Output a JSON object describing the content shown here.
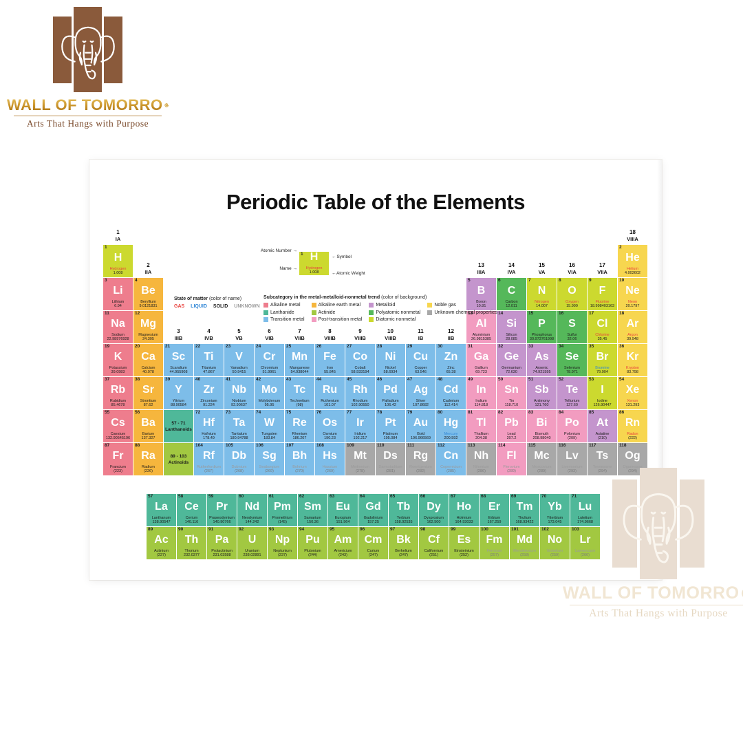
{
  "logo": {
    "brand": "WALL OF TOMORRO",
    "tagline": "Arts That Hangs with Purpose"
  },
  "poster": {
    "title": "Periodic Table of the Elements",
    "key": {
      "atomic_number_label": "Atomic Number",
      "symbol_label": "Symbol",
      "name_label": "Name",
      "atomic_weight_label": "Atomic Weight"
    },
    "legend_state": {
      "title": "State of matter",
      "subtitle": "(color of name)",
      "items": [
        {
          "label": "GAS",
          "state": "g"
        },
        {
          "label": "LIQUID",
          "state": "l"
        },
        {
          "label": "SOLID",
          "state": "s"
        },
        {
          "label": "UNKNOWN",
          "state": "u"
        }
      ]
    },
    "legend_subcategory": {
      "title": "Subcategory in the metal-metalloid-nonmetal trend",
      "subtitle": "(color of background)",
      "items": [
        {
          "label": "Alkaline metal",
          "cat": "ak"
        },
        {
          "label": "Lanthanide",
          "cat": "la"
        },
        {
          "label": "Transition metal",
          "cat": "tm"
        },
        {
          "label": "Alkaline earth metal",
          "cat": "ae"
        },
        {
          "label": "Actinide",
          "cat": "ac"
        },
        {
          "label": "Post-transition metal",
          "cat": "pt"
        },
        {
          "label": "Metalloid",
          "cat": "md"
        },
        {
          "label": "Polyatomic nonmetal",
          "cat": "pn"
        },
        {
          "label": "Diatomic nonmetal",
          "cat": "dn"
        },
        {
          "label": "Noble gas",
          "cat": "ng"
        },
        {
          "label": "Unknown chemical properties",
          "cat": "un"
        }
      ]
    },
    "category_colors": {
      "ak": "#ee7d8d",
      "ae": "#f6b63d",
      "tm": "#7dbde9",
      "pt": "#f29cc0",
      "md": "#c495cd",
      "pn": "#55b85a",
      "dn": "#ccd92f",
      "ng": "#f7d64f",
      "la": "#4fb899",
      "ac": "#a2c841",
      "un": "#a8a8a8"
    },
    "state_colors": {
      "g": "#e8413c",
      "l": "#2f86d6",
      "s": "#1c1c1c",
      "u": "#9b9b9b"
    },
    "group_labels": [
      {
        "num": "1",
        "label": "IA",
        "col": 1,
        "grow": 1
      },
      {
        "num": "2",
        "label": "IIA",
        "col": 2,
        "grow": 2
      },
      {
        "num": "3",
        "label": "IIIB",
        "col": 3,
        "grow": 4
      },
      {
        "num": "4",
        "label": "IVB",
        "col": 4,
        "grow": 4
      },
      {
        "num": "5",
        "label": "VB",
        "col": 5,
        "grow": 4
      },
      {
        "num": "6",
        "label": "VIB",
        "col": 6,
        "grow": 4
      },
      {
        "num": "7",
        "label": "VIIB",
        "col": 7,
        "grow": 4
      },
      {
        "num": "8",
        "label": "VIIIB",
        "col": 8,
        "grow": 4
      },
      {
        "num": "9",
        "label": "VIIIB",
        "col": 9,
        "grow": 4
      },
      {
        "num": "10",
        "label": "VIIIB",
        "col": 10,
        "grow": 4
      },
      {
        "num": "11",
        "label": "IB",
        "col": 11,
        "grow": 4
      },
      {
        "num": "12",
        "label": "IIB",
        "col": 12,
        "grow": 4
      },
      {
        "num": "13",
        "label": "IIIA",
        "col": 13,
        "grow": 2
      },
      {
        "num": "14",
        "label": "IVA",
        "col": 14,
        "grow": 2
      },
      {
        "num": "15",
        "label": "VA",
        "col": 15,
        "grow": 2
      },
      {
        "num": "16",
        "label": "VIA",
        "col": 16,
        "grow": 2
      },
      {
        "num": "17",
        "label": "VIIA",
        "col": 17,
        "grow": 2
      },
      {
        "num": "18",
        "label": "VIIIA",
        "col": 18,
        "grow": 1
      }
    ],
    "placeholders": [
      {
        "range": "57 - 71",
        "label": "Lanthanoids",
        "cat": "la",
        "col": 3,
        "grow": 7
      },
      {
        "range": "89 - 103",
        "label": "Actinoids",
        "cat": "ac",
        "col": 3,
        "grow": 8
      }
    ],
    "elements": [
      [
        1,
        "H",
        "Hydrogen",
        "1.008",
        "dn",
        "g",
        1,
        1
      ],
      [
        2,
        "He",
        "Helium",
        "4.002602",
        "ng",
        "g",
        18,
        1
      ],
      [
        3,
        "Li",
        "Lithium",
        "6.94",
        "ak",
        "s",
        1,
        2
      ],
      [
        4,
        "Be",
        "Beryllium",
        "9.0121831",
        "ae",
        "s",
        2,
        2
      ],
      [
        5,
        "B",
        "Boron",
        "10.81",
        "md",
        "s",
        13,
        2
      ],
      [
        6,
        "C",
        "Carbon",
        "12.011",
        "pn",
        "s",
        14,
        2
      ],
      [
        7,
        "N",
        "Nitrogen",
        "14.007",
        "dn",
        "g",
        15,
        2
      ],
      [
        8,
        "O",
        "Oxygen",
        "15.999",
        "dn",
        "g",
        16,
        2
      ],
      [
        9,
        "F",
        "Fluorine",
        "18.998403163",
        "dn",
        "g",
        17,
        2
      ],
      [
        10,
        "Ne",
        "Neon",
        "20.1797",
        "ng",
        "g",
        18,
        2
      ],
      [
        11,
        "Na",
        "Sodium",
        "22.98976928",
        "ak",
        "s",
        1,
        3
      ],
      [
        12,
        "Mg",
        "Magnesium",
        "24.305",
        "ae",
        "s",
        2,
        3
      ],
      [
        13,
        "Al",
        "Aluminium",
        "26.9815385",
        "pt",
        "s",
        13,
        3
      ],
      [
        14,
        "Si",
        "Silicon",
        "28.085",
        "md",
        "s",
        14,
        3
      ],
      [
        15,
        "P",
        "Phosphorus",
        "30.973761998",
        "pn",
        "s",
        15,
        3
      ],
      [
        16,
        "S",
        "Sulfur",
        "32.06",
        "pn",
        "s",
        16,
        3
      ],
      [
        17,
        "Cl",
        "Chlorine",
        "35.45",
        "dn",
        "g",
        17,
        3
      ],
      [
        18,
        "Ar",
        "Argon",
        "39.948",
        "ng",
        "g",
        18,
        3
      ],
      [
        19,
        "K",
        "Potassium",
        "39.0983",
        "ak",
        "s",
        1,
        4
      ],
      [
        20,
        "Ca",
        "Calcium",
        "40.078",
        "ae",
        "s",
        2,
        4
      ],
      [
        21,
        "Sc",
        "Scandium",
        "44.955908",
        "tm",
        "s",
        3,
        4
      ],
      [
        22,
        "Ti",
        "Titanium",
        "47.867",
        "tm",
        "s",
        4,
        4
      ],
      [
        23,
        "V",
        "Vanadium",
        "50.9415",
        "tm",
        "s",
        5,
        4
      ],
      [
        24,
        "Cr",
        "Chromium",
        "51.9961",
        "tm",
        "s",
        6,
        4
      ],
      [
        25,
        "Mn",
        "Manganese",
        "54.938044",
        "tm",
        "s",
        7,
        4
      ],
      [
        26,
        "Fe",
        "Iron",
        "55.845",
        "tm",
        "s",
        8,
        4
      ],
      [
        27,
        "Co",
        "Cobalt",
        "58.933194",
        "tm",
        "s",
        9,
        4
      ],
      [
        28,
        "Ni",
        "Nickel",
        "58.6934",
        "tm",
        "s",
        10,
        4
      ],
      [
        29,
        "Cu",
        "Copper",
        "63.546",
        "tm",
        "s",
        11,
        4
      ],
      [
        30,
        "Zn",
        "Zinc",
        "65.38",
        "tm",
        "s",
        12,
        4
      ],
      [
        31,
        "Ga",
        "Gallium",
        "69.723",
        "pt",
        "s",
        13,
        4
      ],
      [
        32,
        "Ge",
        "Germanium",
        "72.630",
        "md",
        "s",
        14,
        4
      ],
      [
        33,
        "As",
        "Arsenic",
        "74.921595",
        "md",
        "s",
        15,
        4
      ],
      [
        34,
        "Se",
        "Selenium",
        "78.971",
        "pn",
        "s",
        16,
        4
      ],
      [
        35,
        "Br",
        "Bromine",
        "79.904",
        "dn",
        "l",
        17,
        4
      ],
      [
        36,
        "Kr",
        "Krypton",
        "83.798",
        "ng",
        "g",
        18,
        4
      ],
      [
        37,
        "Rb",
        "Rubidium",
        "85.4678",
        "ak",
        "s",
        1,
        5
      ],
      [
        38,
        "Sr",
        "Strontium",
        "87.62",
        "ae",
        "s",
        2,
        5
      ],
      [
        39,
        "Y",
        "Yttrium",
        "88.90584",
        "tm",
        "s",
        3,
        5
      ],
      [
        40,
        "Zr",
        "Zirconium",
        "91.224",
        "tm",
        "s",
        4,
        5
      ],
      [
        41,
        "Nb",
        "Niobium",
        "92.90637",
        "tm",
        "s",
        5,
        5
      ],
      [
        42,
        "Mo",
        "Molybdenum",
        "95.95",
        "tm",
        "s",
        6,
        5
      ],
      [
        43,
        "Tc",
        "Technetium",
        "(98)",
        "tm",
        "s",
        7,
        5
      ],
      [
        44,
        "Ru",
        "Ruthenium",
        "101.07",
        "tm",
        "s",
        8,
        5
      ],
      [
        45,
        "Rh",
        "Rhodium",
        "102.90550",
        "tm",
        "s",
        9,
        5
      ],
      [
        46,
        "Pd",
        "Palladium",
        "106.42",
        "tm",
        "s",
        10,
        5
      ],
      [
        47,
        "Ag",
        "Silver",
        "107.8682",
        "tm",
        "s",
        11,
        5
      ],
      [
        48,
        "Cd",
        "Cadmium",
        "112.414",
        "tm",
        "s",
        12,
        5
      ],
      [
        49,
        "In",
        "Indium",
        "114.818",
        "pt",
        "s",
        13,
        5
      ],
      [
        50,
        "Sn",
        "Tin",
        "118.710",
        "pt",
        "s",
        14,
        5
      ],
      [
        51,
        "Sb",
        "Antimony",
        "121.760",
        "md",
        "s",
        15,
        5
      ],
      [
        52,
        "Te",
        "Tellurium",
        "127.60",
        "md",
        "s",
        16,
        5
      ],
      [
        53,
        "I",
        "Iodine",
        "126.90447",
        "dn",
        "s",
        17,
        5
      ],
      [
        54,
        "Xe",
        "Xenon",
        "131.293",
        "ng",
        "g",
        18,
        5
      ],
      [
        55,
        "Cs",
        "Caesium",
        "132.90545196",
        "ak",
        "s",
        1,
        6
      ],
      [
        56,
        "Ba",
        "Barium",
        "137.327",
        "ae",
        "s",
        2,
        6
      ],
      [
        72,
        "Hf",
        "Hafnium",
        "178.49",
        "tm",
        "s",
        4,
        6
      ],
      [
        73,
        "Ta",
        "Tantalum",
        "180.94788",
        "tm",
        "s",
        5,
        6
      ],
      [
        74,
        "W",
        "Tungsten",
        "183.84",
        "tm",
        "s",
        6,
        6
      ],
      [
        75,
        "Re",
        "Rhenium",
        "186.207",
        "tm",
        "s",
        7,
        6
      ],
      [
        76,
        "Os",
        "Osmium",
        "190.23",
        "tm",
        "s",
        8,
        6
      ],
      [
        77,
        "Ir",
        "Iridium",
        "192.217",
        "tm",
        "s",
        9,
        6
      ],
      [
        78,
        "Pt",
        "Platinum",
        "195.084",
        "tm",
        "s",
        10,
        6
      ],
      [
        79,
        "Au",
        "Gold",
        "196.966569",
        "tm",
        "s",
        11,
        6
      ],
      [
        80,
        "Hg",
        "Mercury",
        "200.592",
        "tm",
        "l",
        12,
        6
      ],
      [
        81,
        "Tl",
        "Thallium",
        "204.38",
        "pt",
        "s",
        13,
        6
      ],
      [
        82,
        "Pb",
        "Lead",
        "207.2",
        "pt",
        "s",
        14,
        6
      ],
      [
        83,
        "Bi",
        "Bismuth",
        "208.98040",
        "pt",
        "s",
        15,
        6
      ],
      [
        84,
        "Po",
        "Polonium",
        "(209)",
        "pt",
        "s",
        16,
        6
      ],
      [
        85,
        "At",
        "Astatine",
        "(210)",
        "md",
        "s",
        17,
        6
      ],
      [
        86,
        "Rn",
        "Radon",
        "(222)",
        "ng",
        "g",
        18,
        6
      ],
      [
        87,
        "Fr",
        "Francium",
        "(223)",
        "ak",
        "s",
        1,
        7
      ],
      [
        88,
        "Ra",
        "Radium",
        "(226)",
        "ae",
        "s",
        2,
        7
      ],
      [
        104,
        "Rf",
        "Rutherfordium",
        "(267)",
        "tm",
        "u",
        4,
        7
      ],
      [
        105,
        "Db",
        "Dubnium",
        "(268)",
        "tm",
        "u",
        5,
        7
      ],
      [
        106,
        "Sg",
        "Seaborgium",
        "(269)",
        "tm",
        "u",
        6,
        7
      ],
      [
        107,
        "Bh",
        "Bohrium",
        "(270)",
        "tm",
        "u",
        7,
        7
      ],
      [
        108,
        "Hs",
        "Hassium",
        "(269)",
        "tm",
        "u",
        8,
        7
      ],
      [
        109,
        "Mt",
        "Meitnerium",
        "(278)",
        "un",
        "u",
        9,
        7
      ],
      [
        110,
        "Ds",
        "Darmstadtium",
        "(281)",
        "un",
        "u",
        10,
        7
      ],
      [
        111,
        "Rg",
        "Roentgenium",
        "(282)",
        "un",
        "u",
        11,
        7
      ],
      [
        112,
        "Cn",
        "Copernicium",
        "(285)",
        "tm",
        "u",
        12,
        7
      ],
      [
        113,
        "Nh",
        "Nihonium",
        "(286)",
        "un",
        "u",
        13,
        7
      ],
      [
        114,
        "Fl",
        "Flerovium",
        "(289)",
        "pt",
        "u",
        14,
        7
      ],
      [
        115,
        "Mc",
        "Moscovium",
        "(289)",
        "un",
        "u",
        15,
        7
      ],
      [
        116,
        "Lv",
        "Livermorium",
        "(293)",
        "un",
        "u",
        16,
        7
      ],
      [
        117,
        "Ts",
        "Tennessine",
        "(294)",
        "un",
        "u",
        17,
        7
      ],
      [
        118,
        "Og",
        "Oganesson",
        "(294)",
        "un",
        "u",
        18,
        7
      ],
      [
        57,
        "La",
        "Lanthanum",
        "138.90547",
        "la",
        "s",
        1,
        8
      ],
      [
        58,
        "Ce",
        "Cerium",
        "140.116",
        "la",
        "s",
        2,
        8
      ],
      [
        59,
        "Pr",
        "Praseodymium",
        "140.90766",
        "la",
        "s",
        3,
        8
      ],
      [
        60,
        "Nd",
        "Neodymium",
        "144.242",
        "la",
        "s",
        4,
        8
      ],
      [
        61,
        "Pm",
        "Promethium",
        "(145)",
        "la",
        "s",
        5,
        8
      ],
      [
        62,
        "Sm",
        "Samarium",
        "150.36",
        "la",
        "s",
        6,
        8
      ],
      [
        63,
        "Eu",
        "Europium",
        "151.964",
        "la",
        "s",
        7,
        8
      ],
      [
        64,
        "Gd",
        "Gadolinium",
        "157.25",
        "la",
        "s",
        8,
        8
      ],
      [
        65,
        "Tb",
        "Terbium",
        "158.92535",
        "la",
        "s",
        9,
        8
      ],
      [
        66,
        "Dy",
        "Dysprosium",
        "162.500",
        "la",
        "s",
        10,
        8
      ],
      [
        67,
        "Ho",
        "Holmium",
        "164.93033",
        "la",
        "s",
        11,
        8
      ],
      [
        68,
        "Er",
        "Erbium",
        "167.259",
        "la",
        "s",
        12,
        8
      ],
      [
        69,
        "Tm",
        "Thulium",
        "168.93422",
        "la",
        "s",
        13,
        8
      ],
      [
        70,
        "Yb",
        "Ytterbium",
        "173.045",
        "la",
        "s",
        14,
        8
      ],
      [
        71,
        "Lu",
        "Lutetium",
        "174.9668",
        "la",
        "s",
        15,
        8
      ],
      [
        89,
        "Ac",
        "Actinium",
        "(227)",
        "ac",
        "s",
        1,
        9
      ],
      [
        90,
        "Th",
        "Thorium",
        "232.0377",
        "ac",
        "s",
        2,
        9
      ],
      [
        91,
        "Pa",
        "Protactinium",
        "231.03588",
        "ac",
        "s",
        3,
        9
      ],
      [
        92,
        "U",
        "Uranium",
        "238.02891",
        "ac",
        "s",
        4,
        9
      ],
      [
        93,
        "Np",
        "Neptunium",
        "(237)",
        "ac",
        "s",
        5,
        9
      ],
      [
        94,
        "Pu",
        "Plutonium",
        "(244)",
        "ac",
        "s",
        6,
        9
      ],
      [
        95,
        "Am",
        "Americium",
        "(243)",
        "ac",
        "s",
        7,
        9
      ],
      [
        96,
        "Cm",
        "Curium",
        "(247)",
        "ac",
        "s",
        8,
        9
      ],
      [
        97,
        "Bk",
        "Berkelium",
        "(247)",
        "ac",
        "s",
        9,
        9
      ],
      [
        98,
        "Cf",
        "Californium",
        "(251)",
        "ac",
        "s",
        10,
        9
      ],
      [
        99,
        "Es",
        "Einsteinium",
        "(252)",
        "ac",
        "s",
        11,
        9
      ],
      [
        100,
        "Fm",
        "Fermium",
        "(257)",
        "ac",
        "u",
        12,
        9
      ],
      [
        101,
        "Md",
        "Mendelevium",
        "(258)",
        "ac",
        "u",
        13,
        9
      ],
      [
        102,
        "No",
        "Nobelium",
        "(259)",
        "ac",
        "u",
        14,
        9
      ],
      [
        103,
        "Lr",
        "Lawrencium",
        "(266)",
        "ac",
        "u",
        15,
        9
      ]
    ]
  }
}
